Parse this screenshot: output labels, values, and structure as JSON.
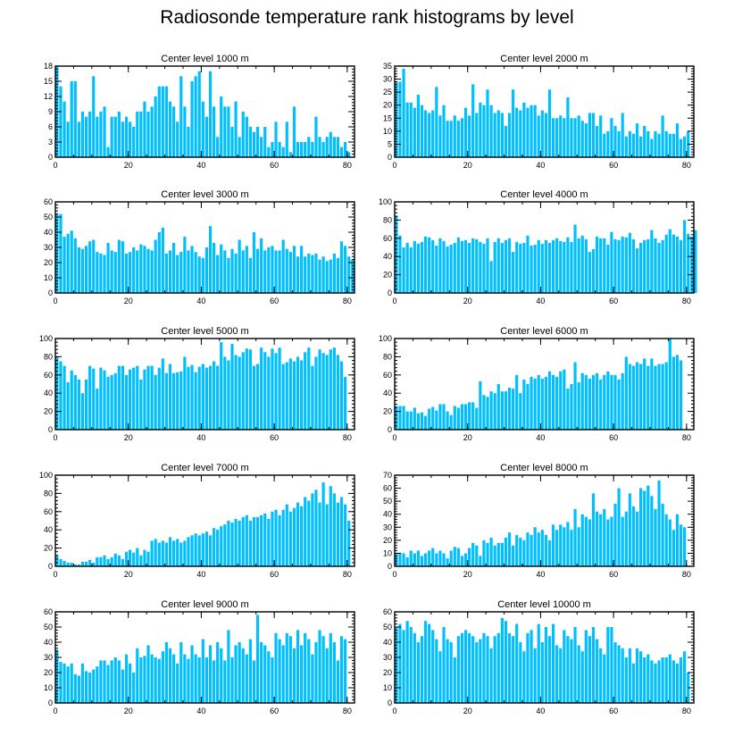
{
  "title": "Radiosonde temperature rank histograms by level",
  "bar_color": "#00bfff",
  "chart_data": [
    {
      "type": "bar",
      "title": "Center level 1000 m",
      "xlim": [
        0,
        82
      ],
      "ylim": [
        0,
        18
      ],
      "xticks": [
        0,
        20,
        40,
        60,
        80
      ],
      "yticks": [
        0,
        3,
        6,
        9,
        12,
        15,
        18
      ],
      "values": [
        18,
        14,
        11,
        7,
        15,
        15,
        7,
        9,
        8,
        9,
        16,
        8,
        9,
        10,
        2,
        8,
        8,
        9,
        7,
        8,
        7,
        6,
        9,
        9,
        11,
        9,
        10,
        12,
        14,
        14,
        14,
        11,
        10,
        7,
        16,
        10,
        6,
        15,
        16,
        17,
        11,
        8,
        17,
        10,
        4,
        12,
        10,
        10,
        6,
        11,
        4,
        9,
        8,
        6,
        5,
        6,
        4,
        6,
        2,
        3,
        7,
        3,
        2,
        7,
        1,
        10,
        3,
        3,
        3,
        4,
        3,
        8,
        4,
        3,
        4,
        5,
        4,
        4,
        2,
        3,
        1
      ]
    },
    {
      "type": "bar",
      "title": "Center level 2000 m",
      "xlim": [
        0,
        82
      ],
      "ylim": [
        0,
        35
      ],
      "xticks": [
        0,
        20,
        40,
        60,
        80
      ],
      "yticks": [
        0,
        5,
        10,
        15,
        20,
        25,
        30,
        35
      ],
      "values": [
        29,
        29,
        34,
        21,
        21,
        19,
        24,
        20,
        18,
        17,
        18,
        27,
        16,
        20,
        14,
        14,
        16,
        14,
        15,
        19,
        16,
        28,
        17,
        21,
        20,
        26,
        20,
        17,
        18,
        17,
        12,
        17,
        26,
        19,
        18,
        21,
        19,
        20,
        20,
        16,
        18,
        17,
        26,
        15,
        15,
        16,
        15,
        23,
        15,
        15,
        16,
        14,
        13,
        17,
        17,
        12,
        16,
        9,
        10,
        15,
        12,
        10,
        17,
        8,
        10,
        9,
        13,
        8,
        12,
        10,
        7,
        10,
        9,
        16,
        10,
        9,
        9,
        13,
        7,
        8,
        10
      ]
    },
    {
      "type": "bar",
      "title": "Center level 3000 m",
      "xlim": [
        0,
        82
      ],
      "ylim": [
        0,
        60
      ],
      "xticks": [
        0,
        20,
        40,
        60,
        80
      ],
      "yticks": [
        0,
        10,
        20,
        30,
        40,
        50,
        60
      ],
      "values": [
        52,
        52,
        37,
        39,
        41,
        36,
        30,
        29,
        31,
        34,
        35,
        27,
        26,
        25,
        33,
        28,
        27,
        35,
        34,
        26,
        27,
        30,
        28,
        32,
        31,
        29,
        28,
        35,
        40,
        43,
        26,
        28,
        33,
        25,
        27,
        37,
        28,
        31,
        27,
        24,
        23,
        30,
        44,
        33,
        25,
        32,
        28,
        23,
        29,
        26,
        35,
        28,
        31,
        23,
        40,
        29,
        36,
        28,
        30,
        31,
        28,
        28,
        35,
        29,
        27,
        31,
        24,
        31,
        24,
        26,
        25,
        26,
        22,
        24,
        21,
        22,
        26,
        23,
        34,
        31,
        24,
        22
      ]
    },
    {
      "type": "bar",
      "title": "Center level 4000 m",
      "xlim": [
        0,
        82
      ],
      "ylim": [
        0,
        100
      ],
      "xticks": [
        0,
        20,
        40,
        60,
        80
      ],
      "yticks": [
        0,
        20,
        40,
        60,
        80,
        100
      ],
      "values": [
        85,
        63,
        50,
        55,
        50,
        57,
        54,
        56,
        62,
        61,
        58,
        52,
        60,
        57,
        51,
        53,
        55,
        61,
        57,
        58,
        55,
        60,
        59,
        56,
        54,
        60,
        35,
        56,
        60,
        55,
        58,
        60,
        45,
        56,
        54,
        55,
        63,
        52,
        53,
        58,
        54,
        58,
        55,
        58,
        60,
        57,
        56,
        61,
        56,
        75,
        60,
        63,
        59,
        45,
        48,
        62,
        60,
        60,
        53,
        67,
        59,
        58,
        62,
        61,
        66,
        59,
        49,
        55,
        58,
        59,
        69,
        60,
        55,
        58,
        64,
        70,
        64,
        62,
        58,
        80,
        65,
        62,
        69
      ]
    },
    {
      "type": "bar",
      "title": "Center level 5000 m",
      "xlim": [
        0,
        82
      ],
      "ylim": [
        0,
        100
      ],
      "xticks": [
        0,
        20,
        40,
        60,
        80
      ],
      "yticks": [
        0,
        20,
        40,
        60,
        80,
        100
      ],
      "values": [
        80,
        75,
        70,
        52,
        65,
        60,
        55,
        40,
        55,
        70,
        67,
        45,
        68,
        65,
        58,
        60,
        62,
        70,
        70,
        60,
        66,
        68,
        70,
        55,
        66,
        70,
        70,
        60,
        68,
        78,
        62,
        72,
        62,
        63,
        64,
        80,
        69,
        71,
        63,
        69,
        72,
        68,
        70,
        75,
        70,
        96,
        80,
        76,
        94,
        82,
        80,
        85,
        89,
        88,
        70,
        72,
        90,
        85,
        80,
        89,
        84,
        90,
        72,
        74,
        78,
        75,
        80,
        76,
        85,
        90,
        70,
        80,
        88,
        84,
        82,
        88,
        90,
        82,
        75,
        58
      ]
    },
    {
      "type": "bar",
      "title": "Center level 6000 m",
      "xlim": [
        0,
        82
      ],
      "ylim": [
        0,
        100
      ],
      "xticks": [
        0,
        20,
        40,
        60,
        80
      ],
      "yticks": [
        0,
        20,
        40,
        60,
        80,
        100
      ],
      "values": [
        26,
        26,
        26,
        20,
        20,
        24,
        18,
        19,
        15,
        23,
        25,
        21,
        28,
        28,
        20,
        16,
        26,
        24,
        28,
        28,
        30,
        30,
        24,
        53,
        38,
        36,
        42,
        40,
        50,
        42,
        42,
        46,
        45,
        60,
        40,
        55,
        50,
        58,
        56,
        60,
        56,
        58,
        64,
        60,
        58,
        64,
        66,
        45,
        50,
        74,
        52,
        62,
        60,
        56,
        60,
        62,
        55,
        60,
        64,
        60,
        60,
        55,
        62,
        80,
        72,
        70,
        74,
        72,
        78,
        70,
        78,
        70,
        72,
        72,
        74,
        100,
        80,
        82,
        76
      ]
    },
    {
      "type": "bar",
      "title": "Center level 7000 m",
      "xlim": [
        0,
        82
      ],
      "ylim": [
        0,
        100
      ],
      "xticks": [
        0,
        20,
        40,
        60,
        80
      ],
      "yticks": [
        0,
        20,
        40,
        60,
        80,
        100
      ],
      "values": [
        12,
        8,
        6,
        4,
        4,
        2,
        2,
        5,
        5,
        7,
        4,
        10,
        10,
        12,
        8,
        10,
        14,
        12,
        8,
        16,
        18,
        15,
        20,
        12,
        18,
        16,
        28,
        30,
        26,
        28,
        26,
        32,
        28,
        30,
        26,
        28,
        32,
        34,
        36,
        34,
        36,
        38,
        34,
        42,
        40,
        44,
        46,
        50,
        48,
        52,
        50,
        54,
        56,
        50,
        54,
        54,
        56,
        58,
        52,
        60,
        62,
        56,
        62,
        68,
        60,
        64,
        70,
        66,
        76,
        72,
        80,
        84,
        70,
        92,
        68,
        88,
        80,
        70,
        76,
        68,
        50
      ]
    },
    {
      "type": "bar",
      "title": "Center level 8000 m",
      "xlim": [
        0,
        82
      ],
      "ylim": [
        0,
        70
      ],
      "xticks": [
        0,
        20,
        40,
        60,
        80
      ],
      "yticks": [
        0,
        10,
        20,
        30,
        40,
        50,
        60,
        70
      ],
      "values": [
        10,
        10,
        10,
        7,
        12,
        10,
        12,
        8,
        10,
        12,
        14,
        10,
        12,
        10,
        6,
        12,
        15,
        14,
        8,
        10,
        14,
        18,
        16,
        8,
        20,
        18,
        22,
        16,
        18,
        18,
        22,
        26,
        16,
        24,
        22,
        20,
        26,
        24,
        30,
        26,
        28,
        24,
        20,
        32,
        28,
        32,
        30,
        34,
        28,
        44,
        30,
        40,
        38,
        36,
        56,
        42,
        40,
        44,
        36,
        38,
        48,
        60,
        38,
        42,
        56,
        46,
        42,
        60,
        58,
        62,
        54,
        44,
        66,
        48,
        40,
        36,
        28,
        40,
        32,
        30
      ]
    },
    {
      "type": "bar",
      "title": "Center level 9000 m",
      "xlim": [
        0,
        82
      ],
      "ylim": [
        0,
        60
      ],
      "xticks": [
        0,
        20,
        40,
        60,
        80
      ],
      "yticks": [
        0,
        10,
        20,
        30,
        40,
        50,
        60
      ],
      "values": [
        35,
        27,
        26,
        24,
        26,
        19,
        18,
        26,
        21,
        20,
        22,
        24,
        28,
        28,
        25,
        28,
        30,
        28,
        22,
        32,
        26,
        20,
        36,
        30,
        31,
        38,
        32,
        30,
        29,
        34,
        40,
        36,
        32,
        26,
        40,
        32,
        29,
        38,
        32,
        30,
        42,
        30,
        38,
        28,
        40,
        36,
        28,
        48,
        30,
        38,
        40,
        36,
        32,
        42,
        28,
        58,
        40,
        38,
        34,
        30,
        46,
        42,
        38,
        46,
        44,
        36,
        48,
        38,
        46,
        42,
        32,
        40,
        48,
        44,
        36,
        46,
        40,
        28,
        44,
        42
      ]
    },
    {
      "type": "bar",
      "title": "Center level 10000 m",
      "xlim": [
        0,
        82
      ],
      "ylim": [
        0,
        60
      ],
      "xticks": [
        0,
        20,
        40,
        60,
        80
      ],
      "yticks": [
        0,
        10,
        20,
        30,
        40,
        50,
        60
      ],
      "values": [
        50,
        52,
        48,
        54,
        50,
        46,
        40,
        44,
        54,
        52,
        48,
        42,
        34,
        50,
        42,
        40,
        30,
        44,
        46,
        48,
        46,
        44,
        40,
        42,
        46,
        44,
        36,
        44,
        46,
        56,
        54,
        46,
        44,
        52,
        40,
        34,
        46,
        48,
        36,
        52,
        40,
        50,
        44,
        52,
        38,
        36,
        48,
        44,
        42,
        50,
        38,
        34,
        48,
        44,
        50,
        42,
        36,
        32,
        50,
        50,
        40,
        38,
        36,
        30,
        36,
        26,
        36,
        34,
        30,
        32,
        28,
        26,
        28,
        30,
        30,
        32,
        28,
        26,
        30,
        34,
        20
      ]
    }
  ]
}
